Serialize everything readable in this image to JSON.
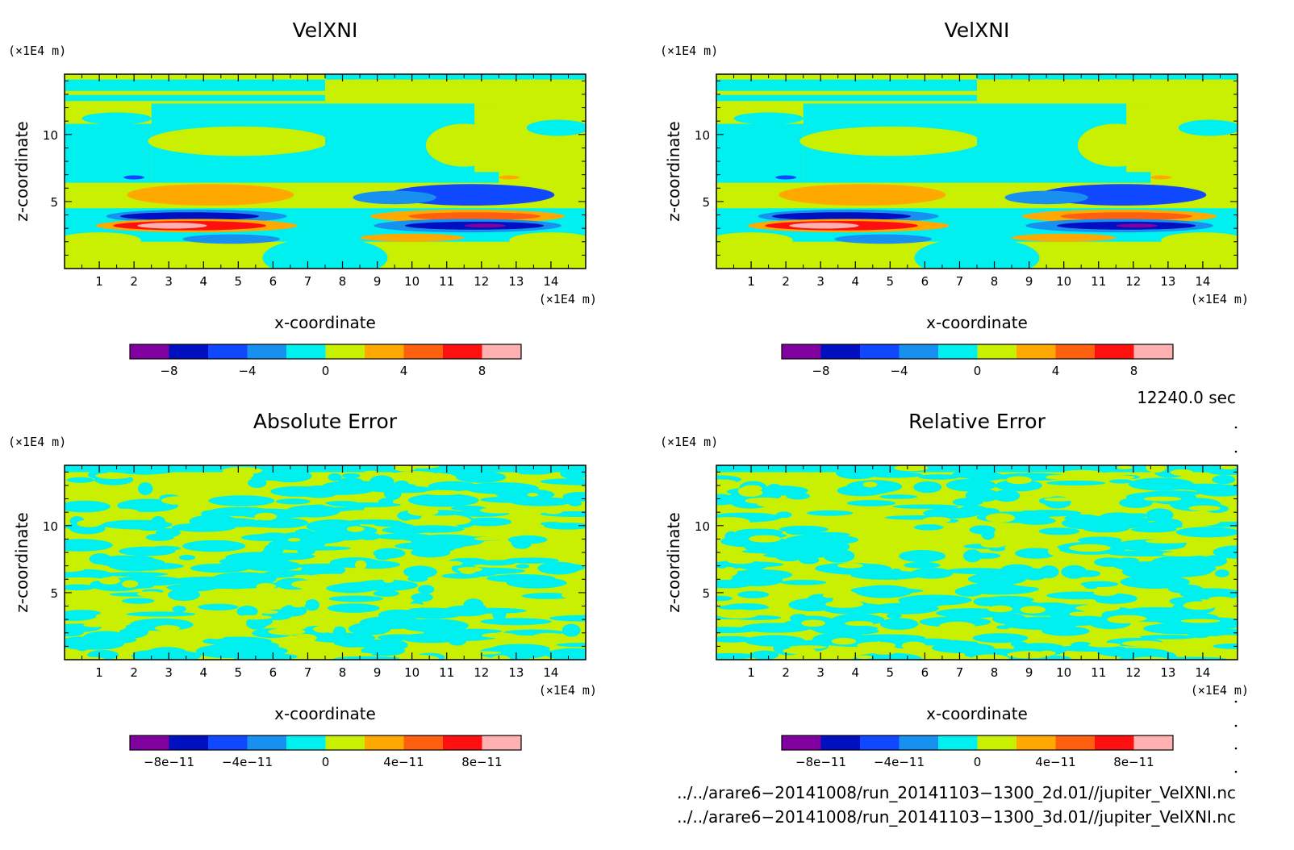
{
  "chart_data": [
    {
      "type": "heatmap",
      "title": "VelXNI",
      "xlabel": "x-coordinate",
      "ylabel": "z-coordinate",
      "x_unit": "(×1E4 m)",
      "y_unit": "(×1E4 m)",
      "xlim": [
        0,
        15
      ],
      "ylim": [
        0,
        14.5
      ],
      "x_ticks": [
        "1",
        "2",
        "3",
        "4",
        "5",
        "6",
        "7",
        "8",
        "9",
        "10",
        "11",
        "12",
        "13",
        "14"
      ],
      "y_ticks": [
        "5",
        "10"
      ],
      "colorbar": {
        "colors": [
          "#8000a0",
          "#0010c0",
          "#1048ff",
          "#1890f0",
          "#00f0f0",
          "#c8f000",
          "#ffa800",
          "#ff6010",
          "#ff1010",
          "#ffb0b0"
        ],
        "tick_labels": [
          "−8",
          "−4",
          "0",
          "4",
          "8"
        ],
        "tick_values": [
          -8,
          -4,
          0,
          4,
          8
        ],
        "range": [
          -10,
          10
        ]
      }
    },
    {
      "type": "heatmap",
      "title": "VelXNI",
      "xlabel": "x-coordinate",
      "ylabel": "z-coordinate",
      "x_unit": "(×1E4 m)",
      "y_unit": "(×1E4 m)",
      "xlim": [
        0,
        15
      ],
      "ylim": [
        0,
        14.5
      ],
      "x_ticks": [
        "1",
        "2",
        "3",
        "4",
        "5",
        "6",
        "7",
        "8",
        "9",
        "10",
        "11",
        "12",
        "13",
        "14"
      ],
      "y_ticks": [
        "5",
        "10"
      ],
      "colorbar": {
        "colors": [
          "#8000a0",
          "#0010c0",
          "#1048ff",
          "#1890f0",
          "#00f0f0",
          "#c8f000",
          "#ffa800",
          "#ff6010",
          "#ff1010",
          "#ffb0b0"
        ],
        "tick_labels": [
          "−8",
          "−4",
          "0",
          "4",
          "8"
        ],
        "tick_values": [
          -8,
          -4,
          0,
          4,
          8
        ],
        "range": [
          -10,
          10
        ]
      }
    },
    {
      "type": "heatmap",
      "title": "Absolute Error",
      "xlabel": "x-coordinate",
      "ylabel": "z-coordinate",
      "x_unit": "(×1E4 m)",
      "y_unit": "(×1E4 m)",
      "xlim": [
        0,
        15
      ],
      "ylim": [
        0,
        14.5
      ],
      "x_ticks": [
        "1",
        "2",
        "3",
        "4",
        "5",
        "6",
        "7",
        "8",
        "9",
        "10",
        "11",
        "12",
        "13",
        "14"
      ],
      "y_ticks": [
        "5",
        "10"
      ],
      "colorbar": {
        "colors": [
          "#8000a0",
          "#0010c0",
          "#1048ff",
          "#1890f0",
          "#00f0f0",
          "#c8f000",
          "#ffa800",
          "#ff6010",
          "#ff1010",
          "#ffb0b0"
        ],
        "tick_labels": [
          "−8e−11",
          "−4e−11",
          "0",
          "4e−11",
          "8e−11"
        ],
        "tick_values": [
          -8e-11,
          -4e-11,
          0,
          4e-11,
          8e-11
        ],
        "range": [
          -1e-10,
          1e-10
        ]
      }
    },
    {
      "type": "heatmap",
      "title": "Relative Error",
      "xlabel": "x-coordinate",
      "ylabel": "z-coordinate",
      "x_unit": "(×1E4 m)",
      "y_unit": "(×1E4 m)",
      "xlim": [
        0,
        15
      ],
      "ylim": [
        0,
        14.5
      ],
      "x_ticks": [
        "1",
        "2",
        "3",
        "4",
        "5",
        "6",
        "7",
        "8",
        "9",
        "10",
        "11",
        "12",
        "13",
        "14"
      ],
      "y_ticks": [
        "5",
        "10"
      ],
      "colorbar": {
        "colors": [
          "#8000a0",
          "#0010c0",
          "#1048ff",
          "#1890f0",
          "#00f0f0",
          "#c8f000",
          "#ffa800",
          "#ff6010",
          "#ff1010",
          "#ffb0b0"
        ],
        "tick_labels": [
          "−8e−11",
          "−4e−11",
          "0",
          "4e−11",
          "8e−11"
        ],
        "tick_values": [
          -8e-11,
          -4e-11,
          0,
          4e-11,
          8e-11
        ],
        "range": [
          -1e-10,
          1e-10
        ]
      }
    }
  ],
  "time_label": "12240.0 sec",
  "files": [
    "../../arare6−20141008/run_20141103−1300_2d.01//jupiter_VelXNI.nc",
    "../../arare6−20141008/run_20141103−1300_3d.01//jupiter_VelXNI.nc"
  ]
}
